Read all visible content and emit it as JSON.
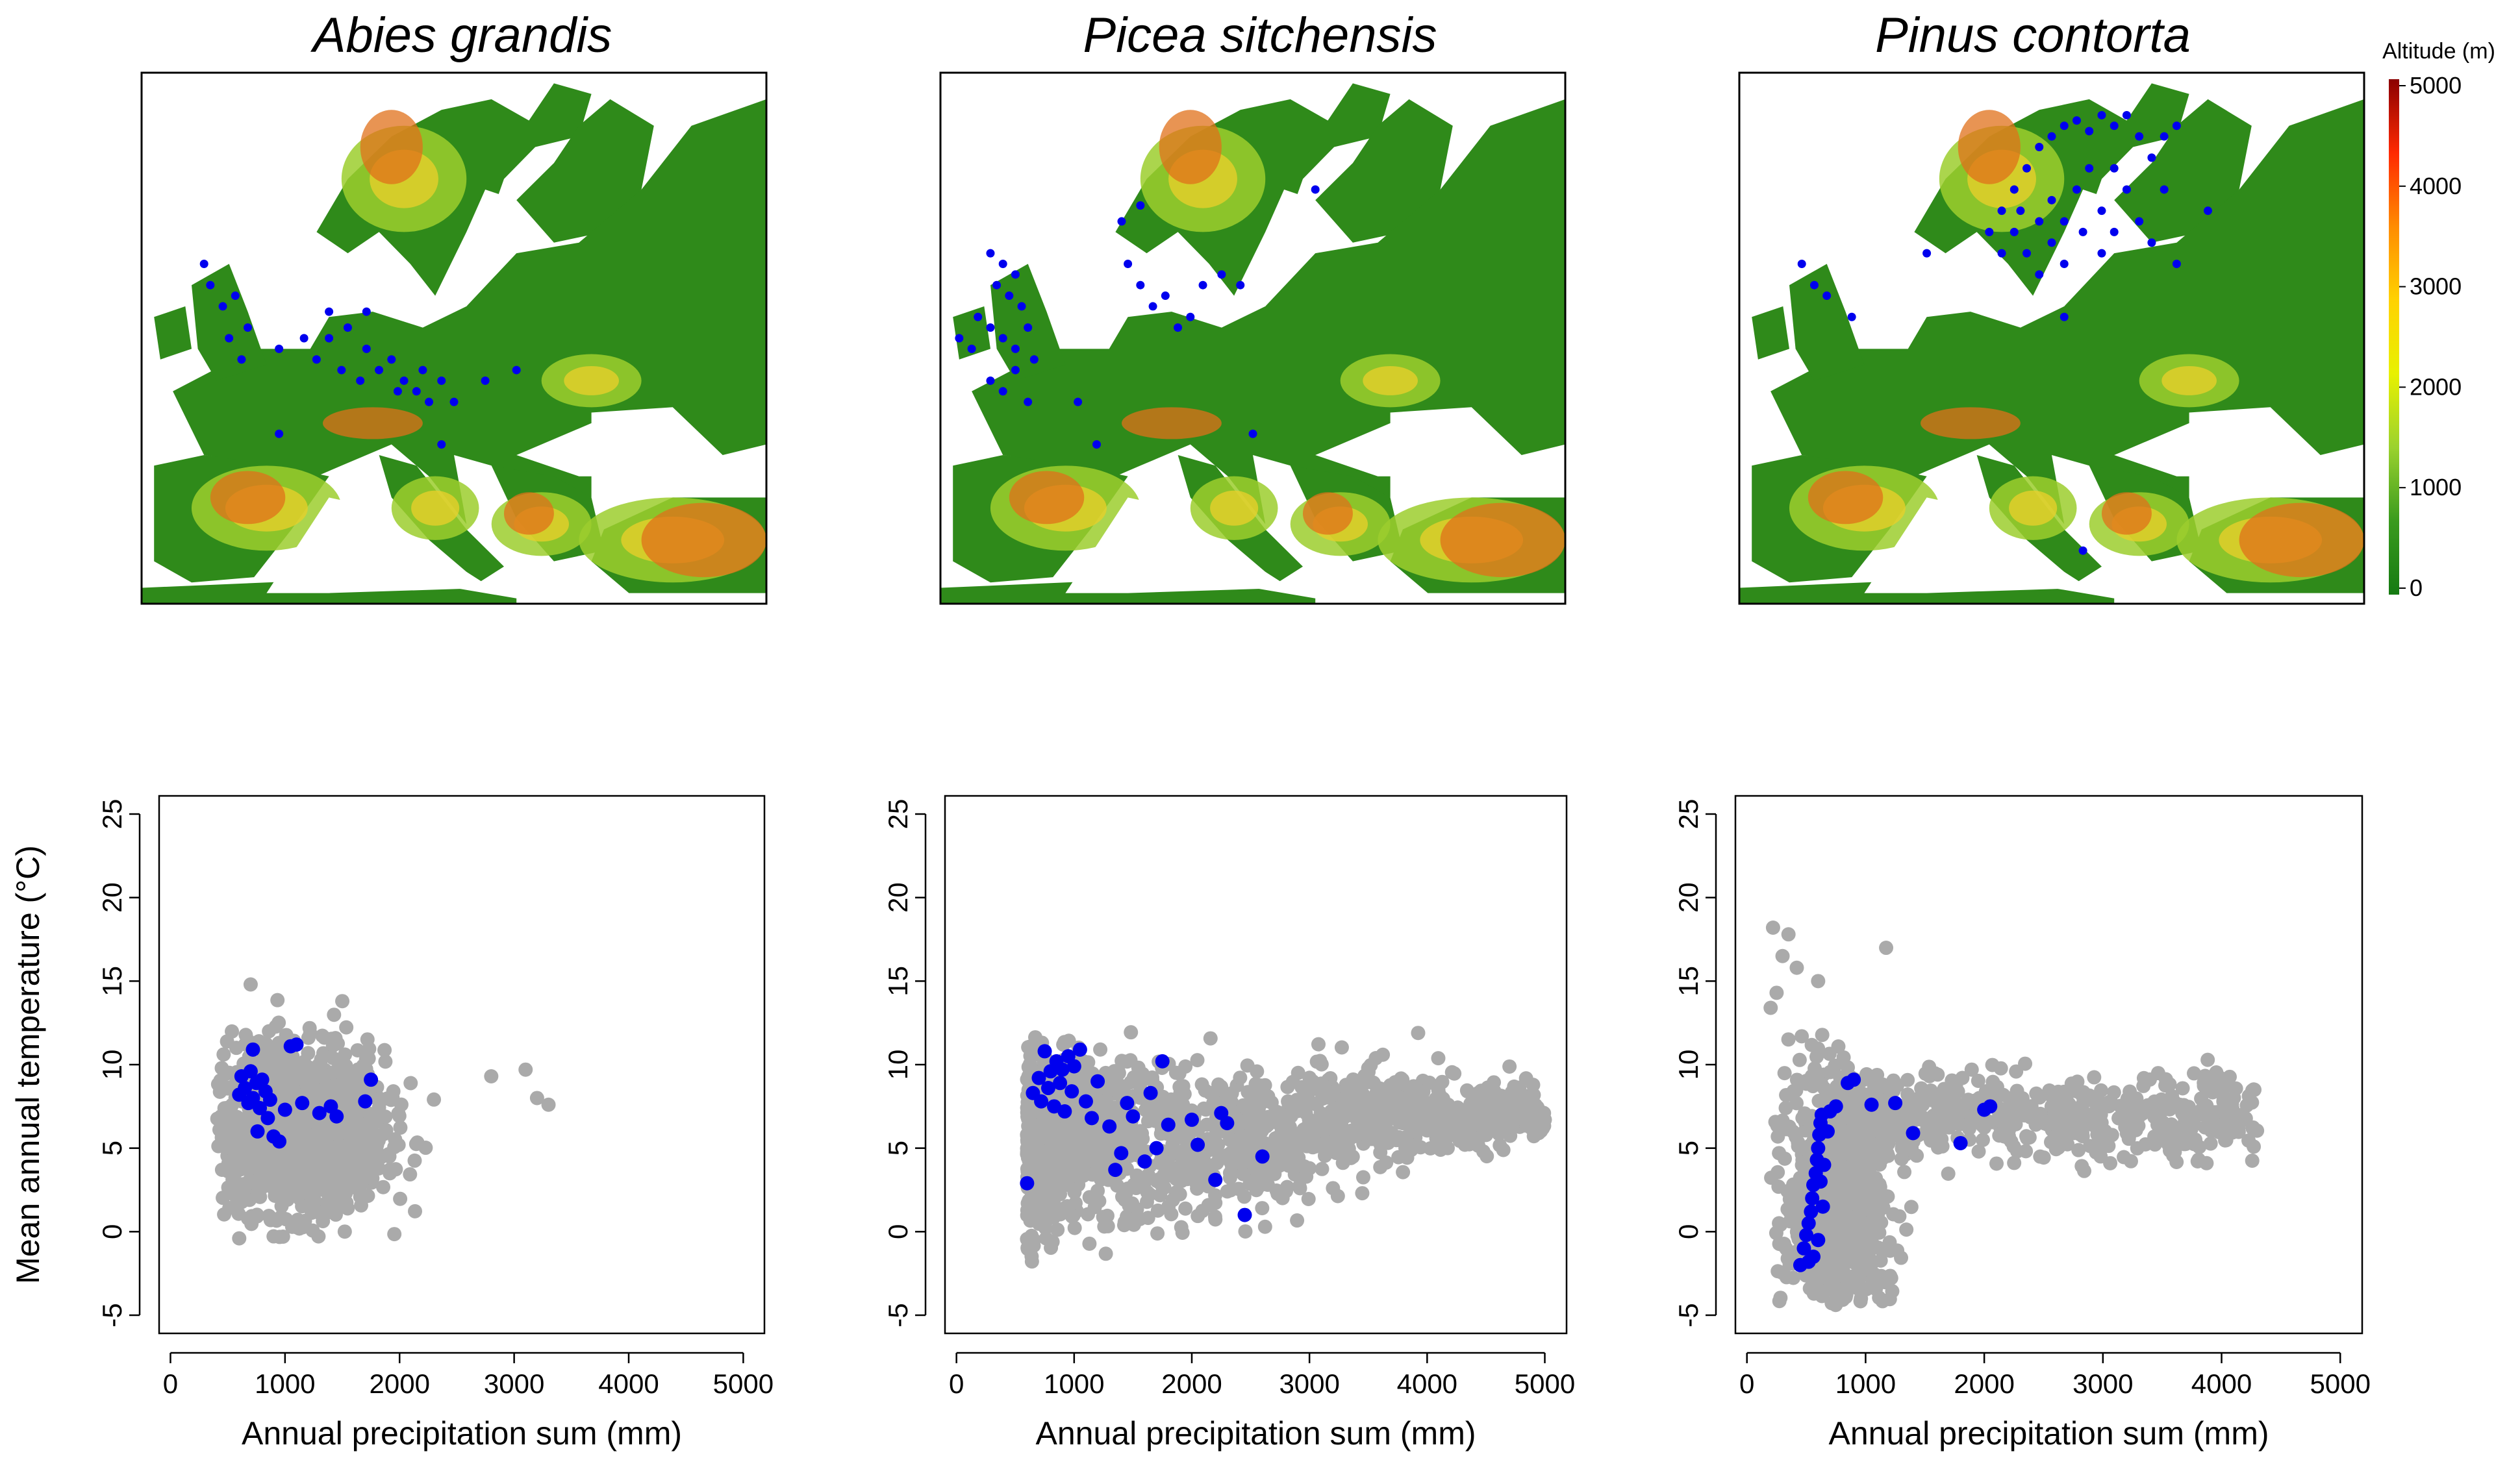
{
  "panels": [
    {
      "species": "Abies grandis"
    },
    {
      "species": "Picea sitchensis"
    },
    {
      "species": "Pinus contorta"
    }
  ],
  "legend": {
    "title": "Altitude (m)",
    "ticks": [
      "5000",
      "4000",
      "3000",
      "2000",
      "1000",
      "0"
    ],
    "colors": [
      "#8b0000",
      "#ff2a00",
      "#ff8c00",
      "#ffd200",
      "#e8f100",
      "#9bd22e",
      "#3a9b1e",
      "#157a12"
    ]
  },
  "colors": {
    "point_species": "#0000ee",
    "point_background": "#aaaaaa",
    "map_sea": "#ffffff",
    "map_land_low": "#2f8a1a",
    "map_land_mid": "#9cce2e",
    "map_land_high": "#e6d02a",
    "map_mountain": "#e0701a"
  },
  "chart_data": [
    {
      "type": "scatter",
      "title": "Abies grandis",
      "xlabel": "",
      "ylabel": "Mean annual temperature (°C)",
      "xlim": [
        0,
        5000
      ],
      "ylim": [
        -5,
        25
      ],
      "xticks": [
        "0",
        "1000",
        "2000",
        "3000",
        "4000",
        "5000"
      ],
      "yticks": [
        "-5",
        "0",
        "5",
        "10",
        "15",
        "20",
        "25"
      ],
      "background_cloud": {
        "x_range": [
          400,
          3300
        ],
        "y_range": [
          -0.5,
          15
        ],
        "center": [
          1100,
          6
        ]
      },
      "series": [
        {
          "values": [
            [
              600,
              8.2
            ],
            [
              620,
              9.3
            ],
            [
              650,
              8.6
            ],
            [
              680,
              7.7
            ],
            [
              700,
              9.6
            ],
            [
              720,
              8.0
            ],
            [
              750,
              8.9
            ],
            [
              780,
              7.4
            ],
            [
              800,
              9.1
            ],
            [
              830,
              8.4
            ],
            [
              870,
              7.9
            ],
            [
              900,
              5.7
            ],
            [
              950,
              5.4
            ],
            [
              1000,
              7.3
            ],
            [
              1050,
              11.1
            ],
            [
              1100,
              11.2
            ],
            [
              1150,
              7.7
            ],
            [
              1300,
              7.1
            ],
            [
              1400,
              7.5
            ],
            [
              1450,
              6.9
            ],
            [
              1700,
              7.8
            ],
            [
              1750,
              9.1
            ],
            [
              720,
              10.9
            ],
            [
              760,
              6.0
            ],
            [
              850,
              6.8
            ]
          ]
        }
      ]
    },
    {
      "type": "scatter",
      "title": "Picea sitchensis",
      "xlabel": "Annual precipitation sum (mm)",
      "ylabel": "",
      "xlim": [
        0,
        5000
      ],
      "ylim": [
        -5,
        25
      ],
      "xticks": [
        "0",
        "1000",
        "2000",
        "3000",
        "4000",
        "5000"
      ],
      "yticks": [
        "-5",
        "0",
        "5",
        "10",
        "15",
        "20",
        "25"
      ],
      "background_cloud": {
        "x_range": [
          400,
          5000
        ],
        "y_range": [
          -2,
          12.2
        ],
        "center": [
          1500,
          5
        ]
      },
      "series": [
        {
          "values": [
            [
              600,
              2.9
            ],
            [
              650,
              8.3
            ],
            [
              700,
              9.2
            ],
            [
              720,
              7.8
            ],
            [
              750,
              10.8
            ],
            [
              780,
              8.6
            ],
            [
              800,
              9.6
            ],
            [
              830,
              7.5
            ],
            [
              850,
              10.2
            ],
            [
              880,
              8.9
            ],
            [
              900,
              9.7
            ],
            [
              920,
              7.2
            ],
            [
              950,
              10.5
            ],
            [
              980,
              8.4
            ],
            [
              1000,
              9.9
            ],
            [
              1050,
              10.9
            ],
            [
              1100,
              7.8
            ],
            [
              1150,
              6.8
            ],
            [
              1200,
              9.0
            ],
            [
              1300,
              6.3
            ],
            [
              1350,
              3.7
            ],
            [
              1400,
              4.7
            ],
            [
              1450,
              7.7
            ],
            [
              1500,
              6.9
            ],
            [
              1600,
              4.2
            ],
            [
              1650,
              8.3
            ],
            [
              1700,
              5.0
            ],
            [
              1750,
              10.2
            ],
            [
              1800,
              6.4
            ],
            [
              2000,
              6.7
            ],
            [
              2050,
              5.2
            ],
            [
              2200,
              3.1
            ],
            [
              2250,
              7.1
            ],
            [
              2300,
              6.5
            ],
            [
              2450,
              1.0
            ],
            [
              2600,
              4.5
            ]
          ]
        }
      ]
    },
    {
      "type": "scatter",
      "title": "Pinus contorta",
      "xlabel": "Annual precipitation sum (mm)",
      "ylabel": "",
      "xlim": [
        0,
        5000
      ],
      "ylim": [
        -5,
        25
      ],
      "xticks": [
        "0",
        "1000",
        "2000",
        "3000",
        "4000",
        "5000"
      ],
      "yticks": [
        "-5",
        "0",
        "5",
        "10",
        "15",
        "20",
        "25"
      ],
      "background_cloud": {
        "x_range": [
          200,
          4300
        ],
        "y_range": [
          -4.5,
          18.2
        ],
        "center": [
          700,
          2
        ]
      },
      "series": [
        {
          "values": [
            [
              450,
              -2.0
            ],
            [
              480,
              -1.0
            ],
            [
              500,
              -0.2
            ],
            [
              520,
              0.5
            ],
            [
              540,
              1.2
            ],
            [
              550,
              2.0
            ],
            [
              560,
              2.8
            ],
            [
              580,
              3.5
            ],
            [
              590,
              4.3
            ],
            [
              600,
              5.0
            ],
            [
              610,
              5.8
            ],
            [
              620,
              6.5
            ],
            [
              630,
              7.0
            ],
            [
              640,
              1.5
            ],
            [
              560,
              -1.5
            ],
            [
              620,
              3.0
            ],
            [
              680,
              6.0
            ],
            [
              700,
              7.2
            ],
            [
              750,
              7.5
            ],
            [
              850,
              8.9
            ],
            [
              900,
              9.1
            ],
            [
              1050,
              7.6
            ],
            [
              1250,
              7.7
            ],
            [
              1400,
              5.9
            ],
            [
              1800,
              5.3
            ],
            [
              2000,
              7.3
            ],
            [
              2050,
              7.5
            ],
            [
              600,
              -0.5
            ],
            [
              650,
              4.0
            ],
            [
              520,
              -1.8
            ]
          ]
        }
      ]
    }
  ]
}
